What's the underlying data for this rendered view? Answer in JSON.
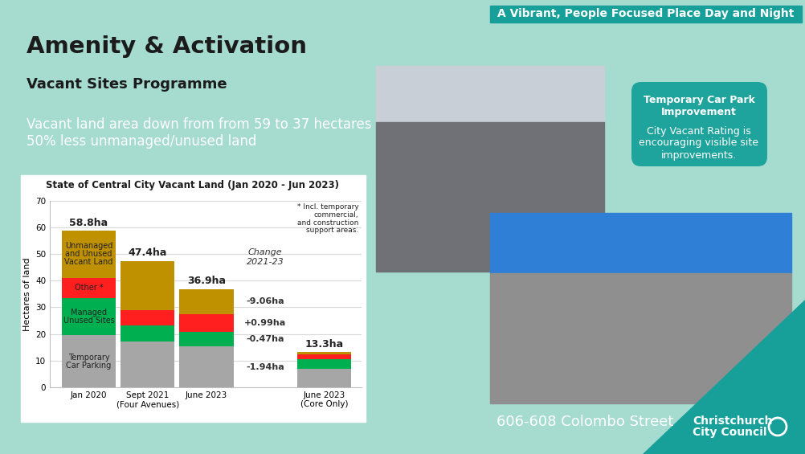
{
  "banner": "A Vibrant, People Focused Place Day and Night",
  "header": {
    "title": "Amenity & Activation",
    "subtitle": "Vacant Sites Programme",
    "lines": [
      "Vacant land area down from from 59 to 37 hectares",
      "50% less unmanaged/unused land"
    ]
  },
  "callout": {
    "title": "Temporary Car Park\nImprovement",
    "text": "City Vacant Rating is\nencouraging visible site\nimprovements."
  },
  "caption": "606-608 Colombo Street",
  "logo": "Christchurch\nCity Council",
  "chart_data": {
    "type": "bar",
    "stacked": true,
    "grid": true,
    "title": "State of Central City Vacant Land (Jan 2020 - Jun 2023)",
    "y_label": "Hectares of land",
    "categories": [
      "Jan 2020",
      "Sept 2021\n(Four Avenues)",
      "June 2023",
      null,
      "June 2023\n(Core Only)"
    ],
    "series": [
      {
        "name": "Temporary\nCar Parking",
        "color": "#a6a6a6",
        "values": [
          19.5,
          17.2,
          15.26,
          null,
          7.0
        ],
        "change_label": "-1.94ha"
      },
      {
        "name": "Managed\nUnused Sites",
        "color": "#00b050",
        "values": [
          14.0,
          6.0,
          5.53,
          null,
          3.5
        ],
        "change_label": "-0.47ha"
      },
      {
        "name": "Other *",
        "color": "#ff1f1f",
        "values": [
          7.5,
          5.6,
          6.59,
          null,
          1.8
        ],
        "change_label": "+0.99ha"
      },
      {
        "name": "Unmanaged\nand Unused\nVacant Land",
        "color": "#bf9000",
        "values": [
          17.8,
          18.58,
          9.52,
          null,
          1.0
        ],
        "change_label": "-9.06ha"
      }
    ],
    "totals": [
      58.8,
      47.4,
      36.9,
      null,
      13.3
    ],
    "total_labels": [
      "58.8ha",
      "47.4ha",
      "36.9ha",
      null,
      "13.3ha"
    ],
    "change_title": "Change\n2021-23",
    "note": "* Incl. temporary\ncommercial,\nand construction\nsupport areas.",
    "ylim": [
      0,
      70
    ],
    "yticks": [
      0,
      10,
      20,
      30,
      40,
      50,
      60,
      70
    ]
  }
}
